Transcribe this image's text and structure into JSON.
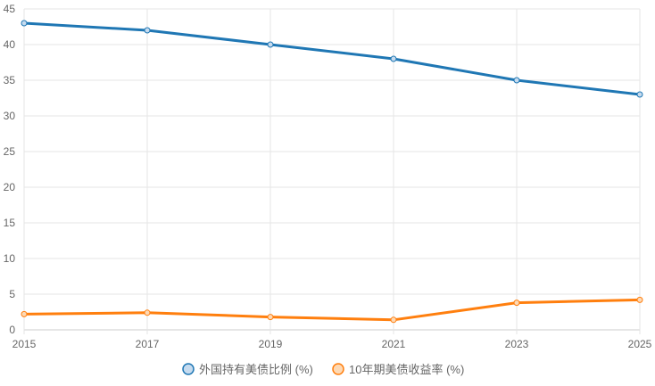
{
  "chart_data": {
    "type": "line",
    "title": "",
    "xlabel": "",
    "ylabel": "",
    "x": [
      "2015",
      "2017",
      "2019",
      "2021",
      "2023",
      "2025"
    ],
    "ylim": [
      0,
      45
    ],
    "yticks": [
      "0",
      "5",
      "10",
      "15",
      "20",
      "25",
      "30",
      "35",
      "40",
      "45"
    ],
    "grid": true,
    "legend_position": "bottom",
    "series": [
      {
        "name": "外国持有美债比例 (%)",
        "color": "#1f77b4",
        "fill": "#c6dbef",
        "values": [
          43,
          42,
          40,
          38,
          35,
          33
        ]
      },
      {
        "name": "10年期美债收益率 (%)",
        "color": "#ff7f0e",
        "fill": "#fdd9b5",
        "values": [
          2.2,
          2.4,
          1.8,
          1.4,
          3.8,
          4.2
        ]
      }
    ]
  }
}
